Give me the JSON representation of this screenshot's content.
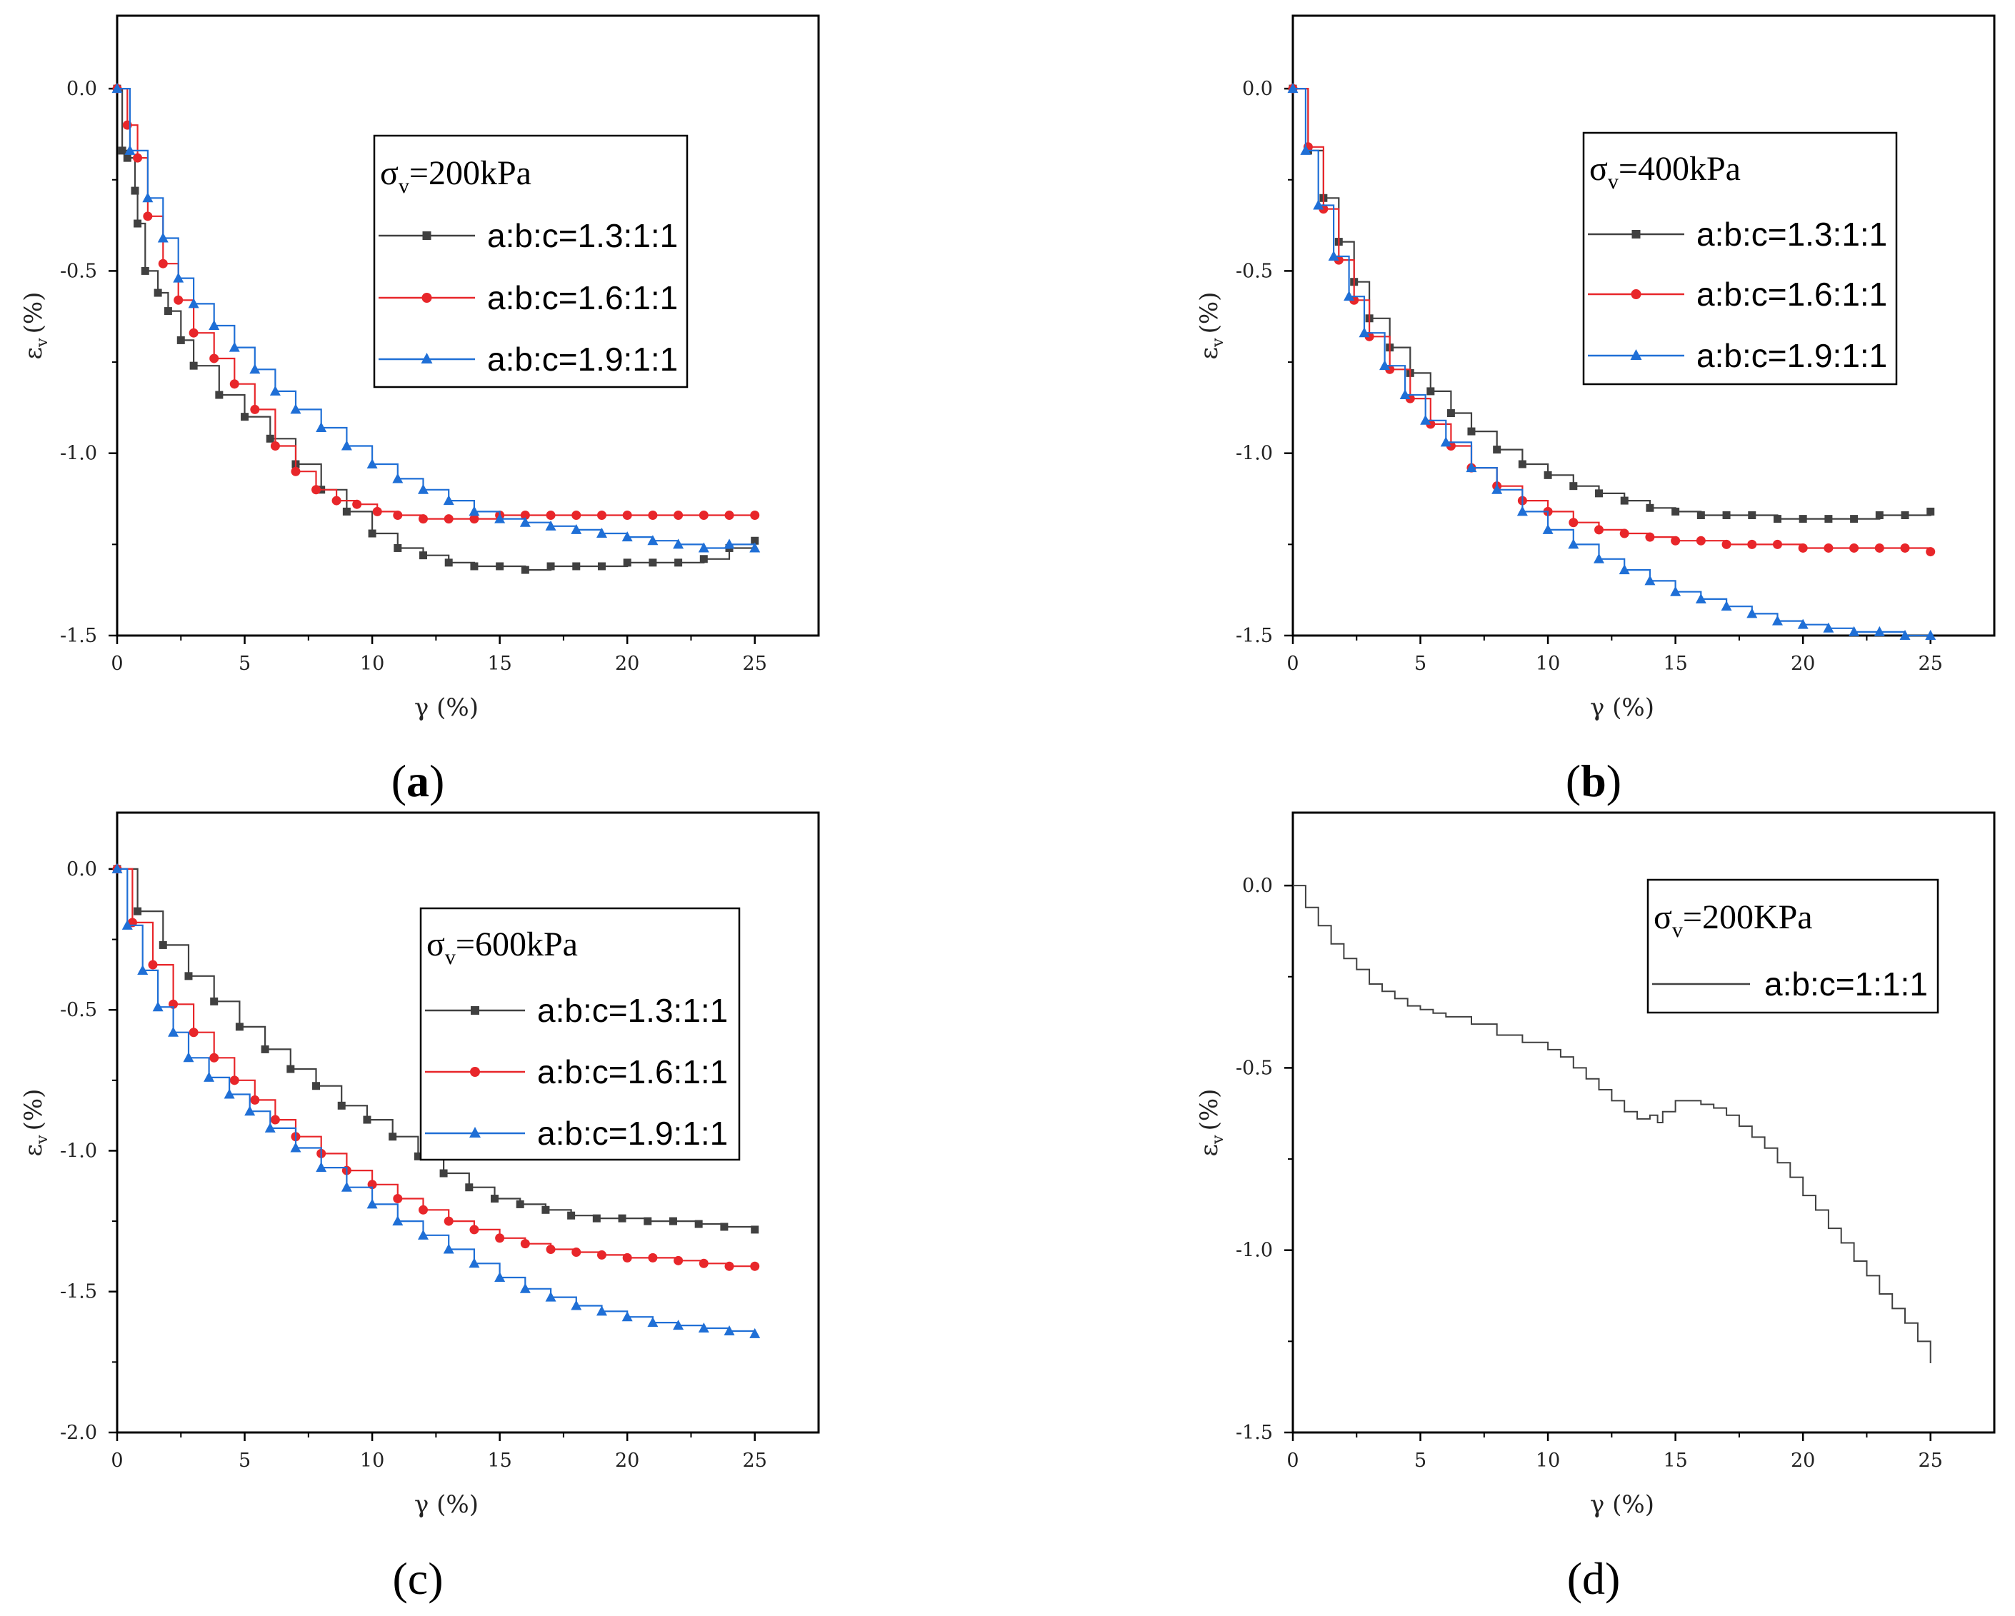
{
  "chart_data": [
    {
      "type": "line",
      "panel": "a",
      "label": "a",
      "xlabel": "γ (%)",
      "ylabel": "ε",
      "ylabel_sub": "v",
      "ylabel_unit": "(%)",
      "xlim": [
        0,
        27.5
      ],
      "ylim": [
        -1.5,
        0.2
      ],
      "xticks": [
        0,
        5,
        10,
        15,
        20,
        25
      ],
      "yticks": [
        0.0,
        -0.5,
        -1.0,
        -1.5
      ],
      "xtick_labels": [
        "0",
        "5",
        "10",
        "15",
        "20",
        "25"
      ],
      "ytick_labels": [
        "0.0",
        "-0.5",
        "-1.0",
        "-1.5"
      ],
      "legend": {
        "title": "σ",
        "title_sub": "v",
        "title_rest": "=200kPa",
        "position": "upper-right"
      },
      "series": [
        {
          "name": "a:b:c=1.3:1:1",
          "color": "#404040",
          "marker": "square",
          "x": [
            0,
            0.2,
            0.4,
            0.7,
            0.8,
            1.1,
            1.6,
            2.0,
            2.5,
            3.0,
            4.0,
            5.0,
            6.0,
            7.0,
            8.0,
            9.0,
            10.0,
            11.0,
            12.0,
            13.0,
            14.0,
            15.0,
            16.0,
            17.0,
            18.0,
            19.0,
            20.0,
            21.0,
            22.0,
            23.0,
            24.0,
            25.0
          ],
          "y": [
            0,
            -0.17,
            -0.19,
            -0.28,
            -0.37,
            -0.5,
            -0.56,
            -0.61,
            -0.69,
            -0.76,
            -0.84,
            -0.9,
            -0.96,
            -1.03,
            -1.1,
            -1.16,
            -1.22,
            -1.26,
            -1.28,
            -1.3,
            -1.31,
            -1.31,
            -1.32,
            -1.31,
            -1.31,
            -1.31,
            -1.3,
            -1.3,
            -1.3,
            -1.29,
            -1.26,
            -1.24
          ]
        },
        {
          "name": "a:b:c=1.6:1:1",
          "color": "#e8262a",
          "marker": "circle",
          "x": [
            0,
            0.4,
            0.8,
            1.2,
            1.8,
            2.4,
            3.0,
            3.8,
            4.6,
            5.4,
            6.2,
            7.0,
            7.8,
            8.6,
            9.4,
            10.2,
            11.0,
            12.0,
            13.0,
            14.0,
            15.0,
            16.0,
            17.0,
            18.0,
            19.0,
            20.0,
            21.0,
            22.0,
            23.0,
            24.0,
            25.0
          ],
          "y": [
            0,
            -0.1,
            -0.19,
            -0.35,
            -0.48,
            -0.58,
            -0.67,
            -0.74,
            -0.81,
            -0.88,
            -0.98,
            -1.05,
            -1.1,
            -1.13,
            -1.14,
            -1.16,
            -1.17,
            -1.18,
            -1.18,
            -1.18,
            -1.17,
            -1.17,
            -1.17,
            -1.17,
            -1.17,
            -1.17,
            -1.17,
            -1.17,
            -1.17,
            -1.17,
            -1.17
          ]
        },
        {
          "name": "a:b:c=1.9:1:1",
          "color": "#1f6fd6",
          "marker": "triangle",
          "x": [
            0,
            0.5,
            1.2,
            1.8,
            2.4,
            3.0,
            3.8,
            4.6,
            5.4,
            6.2,
            7.0,
            8.0,
            9.0,
            10.0,
            11.0,
            12.0,
            13.0,
            14.0,
            15.0,
            16.0,
            17.0,
            18.0,
            19.0,
            20.0,
            21.0,
            22.0,
            23.0,
            24.0,
            25.0
          ],
          "y": [
            0,
            -0.17,
            -0.3,
            -0.41,
            -0.52,
            -0.59,
            -0.65,
            -0.71,
            -0.77,
            -0.83,
            -0.88,
            -0.93,
            -0.98,
            -1.03,
            -1.07,
            -1.1,
            -1.13,
            -1.16,
            -1.18,
            -1.19,
            -1.2,
            -1.21,
            -1.22,
            -1.23,
            -1.24,
            -1.25,
            -1.26,
            -1.25,
            -1.26
          ]
        }
      ]
    },
    {
      "type": "line",
      "panel": "b",
      "label": "b",
      "xlabel": "γ (%)",
      "ylabel": "ε",
      "ylabel_sub": "v",
      "ylabel_unit": "(%)",
      "xlim": [
        0,
        27.5
      ],
      "ylim": [
        -1.5,
        0.2
      ],
      "xticks": [
        0,
        5,
        10,
        15,
        20,
        25
      ],
      "yticks": [
        0.0,
        -0.5,
        -1.0,
        -1.5
      ],
      "xtick_labels": [
        "0",
        "5",
        "10",
        "15",
        "20",
        "25"
      ],
      "ytick_labels": [
        "0.0",
        "-0.5",
        "-1.0",
        "-1.5"
      ],
      "legend": {
        "title": "σ",
        "title_sub": "v",
        "title_rest": "=400kPa",
        "position": "upper-right"
      },
      "series": [
        {
          "name": "a:b:c=1.3:1:1",
          "color": "#404040",
          "marker": "square",
          "x": [
            0,
            0.6,
            1.2,
            1.8,
            2.4,
            3.0,
            3.8,
            4.6,
            5.4,
            6.2,
            7.0,
            8.0,
            9.0,
            10.0,
            11.0,
            12.0,
            13.0,
            14.0,
            15.0,
            16.0,
            17.0,
            18.0,
            19.0,
            20.0,
            21.0,
            22.0,
            23.0,
            24.0,
            25.0
          ],
          "y": [
            0,
            -0.17,
            -0.3,
            -0.42,
            -0.53,
            -0.63,
            -0.71,
            -0.78,
            -0.83,
            -0.89,
            -0.94,
            -0.99,
            -1.03,
            -1.06,
            -1.09,
            -1.11,
            -1.13,
            -1.15,
            -1.16,
            -1.17,
            -1.17,
            -1.17,
            -1.18,
            -1.18,
            -1.18,
            -1.18,
            -1.17,
            -1.17,
            -1.16
          ]
        },
        {
          "name": "a:b:c=1.6:1:1",
          "color": "#e8262a",
          "marker": "circle",
          "x": [
            0,
            0.6,
            1.2,
            1.8,
            2.4,
            3.0,
            3.8,
            4.6,
            5.4,
            6.2,
            7.0,
            8.0,
            9.0,
            10.0,
            11.0,
            12.0,
            13.0,
            14.0,
            15.0,
            16.0,
            17.0,
            18.0,
            19.0,
            20.0,
            21.0,
            22.0,
            23.0,
            24.0,
            25.0
          ],
          "y": [
            0,
            -0.16,
            -0.33,
            -0.47,
            -0.58,
            -0.68,
            -0.77,
            -0.85,
            -0.92,
            -0.98,
            -1.04,
            -1.09,
            -1.13,
            -1.16,
            -1.19,
            -1.21,
            -1.22,
            -1.23,
            -1.24,
            -1.24,
            -1.25,
            -1.25,
            -1.25,
            -1.26,
            -1.26,
            -1.26,
            -1.26,
            -1.26,
            -1.27
          ]
        },
        {
          "name": "a:b:c=1.9:1:1",
          "color": "#1f6fd6",
          "marker": "triangle",
          "x": [
            0,
            0.5,
            1.0,
            1.6,
            2.2,
            2.8,
            3.6,
            4.4,
            5.2,
            6.0,
            7.0,
            8.0,
            9.0,
            10.0,
            11.0,
            12.0,
            13.0,
            14.0,
            15.0,
            16.0,
            17.0,
            18.0,
            19.0,
            20.0,
            21.0,
            22.0,
            23.0,
            24.0,
            25.0
          ],
          "y": [
            0,
            -0.17,
            -0.32,
            -0.46,
            -0.57,
            -0.67,
            -0.76,
            -0.84,
            -0.91,
            -0.97,
            -1.04,
            -1.1,
            -1.16,
            -1.21,
            -1.25,
            -1.29,
            -1.32,
            -1.35,
            -1.38,
            -1.4,
            -1.42,
            -1.44,
            -1.46,
            -1.47,
            -1.48,
            -1.49,
            -1.49,
            -1.5,
            -1.5
          ]
        }
      ]
    },
    {
      "type": "line",
      "panel": "c",
      "label": "c",
      "xlabel": "γ (%)",
      "ylabel": "ε",
      "ylabel_sub": "v",
      "ylabel_unit": "(%)",
      "xlim": [
        0,
        27.5
      ],
      "ylim": [
        -2.0,
        0.2
      ],
      "xticks": [
        0,
        5,
        10,
        15,
        20,
        25
      ],
      "yticks": [
        0.0,
        -0.5,
        -1.0,
        -1.5,
        -2.0
      ],
      "xtick_labels": [
        "0",
        "5",
        "10",
        "15",
        "20",
        "25"
      ],
      "ytick_labels": [
        "0.0",
        "-0.5",
        "-1.0",
        "-1.5",
        "-2.0"
      ],
      "legend": {
        "title": "σ",
        "title_sub": "v",
        "title_rest": "=600kPa",
        "position": "upper-right"
      },
      "series": [
        {
          "name": "a:b:c=1.3:1:1",
          "color": "#404040",
          "marker": "square",
          "x": [
            0,
            0.8,
            1.8,
            2.8,
            3.8,
            4.8,
            5.8,
            6.8,
            7.8,
            8.8,
            9.8,
            10.8,
            11.8,
            12.8,
            13.8,
            14.8,
            15.8,
            16.8,
            17.8,
            18.8,
            19.8,
            20.8,
            21.8,
            22.8,
            23.8,
            25.0
          ],
          "y": [
            0,
            -0.15,
            -0.27,
            -0.38,
            -0.47,
            -0.56,
            -0.64,
            -0.71,
            -0.77,
            -0.84,
            -0.89,
            -0.95,
            -1.02,
            -1.08,
            -1.13,
            -1.17,
            -1.19,
            -1.21,
            -1.23,
            -1.24,
            -1.24,
            -1.25,
            -1.25,
            -1.26,
            -1.27,
            -1.28
          ]
        },
        {
          "name": "a:b:c=1.6:1:1",
          "color": "#e8262a",
          "marker": "circle",
          "x": [
            0,
            0.6,
            1.4,
            2.2,
            3.0,
            3.8,
            4.6,
            5.4,
            6.2,
            7.0,
            8.0,
            9.0,
            10.0,
            11.0,
            12.0,
            13.0,
            14.0,
            15.0,
            16.0,
            17.0,
            18.0,
            19.0,
            20.0,
            21.0,
            22.0,
            23.0,
            24.0,
            25.0
          ],
          "y": [
            0,
            -0.19,
            -0.34,
            -0.48,
            -0.58,
            -0.67,
            -0.75,
            -0.82,
            -0.89,
            -0.95,
            -1.01,
            -1.07,
            -1.12,
            -1.17,
            -1.21,
            -1.25,
            -1.28,
            -1.31,
            -1.33,
            -1.35,
            -1.36,
            -1.37,
            -1.38,
            -1.38,
            -1.39,
            -1.4,
            -1.41,
            -1.41
          ]
        },
        {
          "name": "a:b:c=1.9:1:1",
          "color": "#1f6fd6",
          "marker": "triangle",
          "x": [
            0,
            0.4,
            1.0,
            1.6,
            2.2,
            2.8,
            3.6,
            4.4,
            5.2,
            6.0,
            7.0,
            8.0,
            9.0,
            10.0,
            11.0,
            12.0,
            13.0,
            14.0,
            15.0,
            16.0,
            17.0,
            18.0,
            19.0,
            20.0,
            21.0,
            22.0,
            23.0,
            24.0,
            25.0
          ],
          "y": [
            0,
            -0.2,
            -0.36,
            -0.49,
            -0.58,
            -0.67,
            -0.74,
            -0.8,
            -0.86,
            -0.92,
            -0.99,
            -1.06,
            -1.13,
            -1.19,
            -1.25,
            -1.3,
            -1.35,
            -1.4,
            -1.45,
            -1.49,
            -1.52,
            -1.55,
            -1.57,
            -1.59,
            -1.61,
            -1.62,
            -1.63,
            -1.64,
            -1.65
          ]
        }
      ]
    },
    {
      "type": "line",
      "panel": "d",
      "label": "d",
      "xlabel": "γ (%)",
      "ylabel": "ε",
      "ylabel_sub": "v",
      "ylabel_unit": "(%)",
      "xlim": [
        0,
        27.5
      ],
      "ylim": [
        -1.5,
        0.2
      ],
      "xticks": [
        0,
        5,
        10,
        15,
        20,
        25
      ],
      "yticks": [
        0.0,
        -0.5,
        -1.0,
        -1.5
      ],
      "xtick_labels": [
        "0",
        "5",
        "10",
        "15",
        "20",
        "25"
      ],
      "ytick_labels": [
        "0.0",
        "-0.5",
        "-1.0",
        "-1.5"
      ],
      "legend": {
        "title": "σ",
        "title_sub": "v",
        "title_rest": "=200KPa",
        "position": "upper-right"
      },
      "series": [
        {
          "name": "a:b:c=1:1:1",
          "color": "#404040",
          "marker": "none",
          "x": [
            0,
            0.5,
            1.0,
            1.5,
            2.0,
            2.5,
            3.0,
            3.5,
            4.0,
            4.5,
            5.0,
            5.5,
            6.0,
            7.0,
            8.0,
            9.0,
            10.0,
            10.5,
            11.0,
            11.5,
            12.0,
            12.5,
            13.0,
            13.5,
            14.0,
            14.3,
            14.5,
            15.0,
            15.5,
            16.0,
            16.5,
            17.0,
            17.5,
            18.0,
            18.5,
            19.0,
            19.5,
            20.0,
            20.5,
            21.0,
            21.5,
            22.0,
            22.5,
            23.0,
            23.5,
            24.0,
            24.5,
            25.0
          ],
          "y": [
            0,
            -0.06,
            -0.11,
            -0.16,
            -0.2,
            -0.23,
            -0.27,
            -0.29,
            -0.31,
            -0.33,
            -0.34,
            -0.35,
            -0.36,
            -0.38,
            -0.41,
            -0.43,
            -0.45,
            -0.47,
            -0.5,
            -0.53,
            -0.56,
            -0.59,
            -0.62,
            -0.64,
            -0.63,
            -0.65,
            -0.62,
            -0.59,
            -0.59,
            -0.6,
            -0.61,
            -0.63,
            -0.66,
            -0.69,
            -0.72,
            -0.76,
            -0.8,
            -0.85,
            -0.89,
            -0.94,
            -0.98,
            -1.03,
            -1.07,
            -1.12,
            -1.16,
            -1.2,
            -1.25,
            -1.31
          ]
        }
      ]
    }
  ]
}
